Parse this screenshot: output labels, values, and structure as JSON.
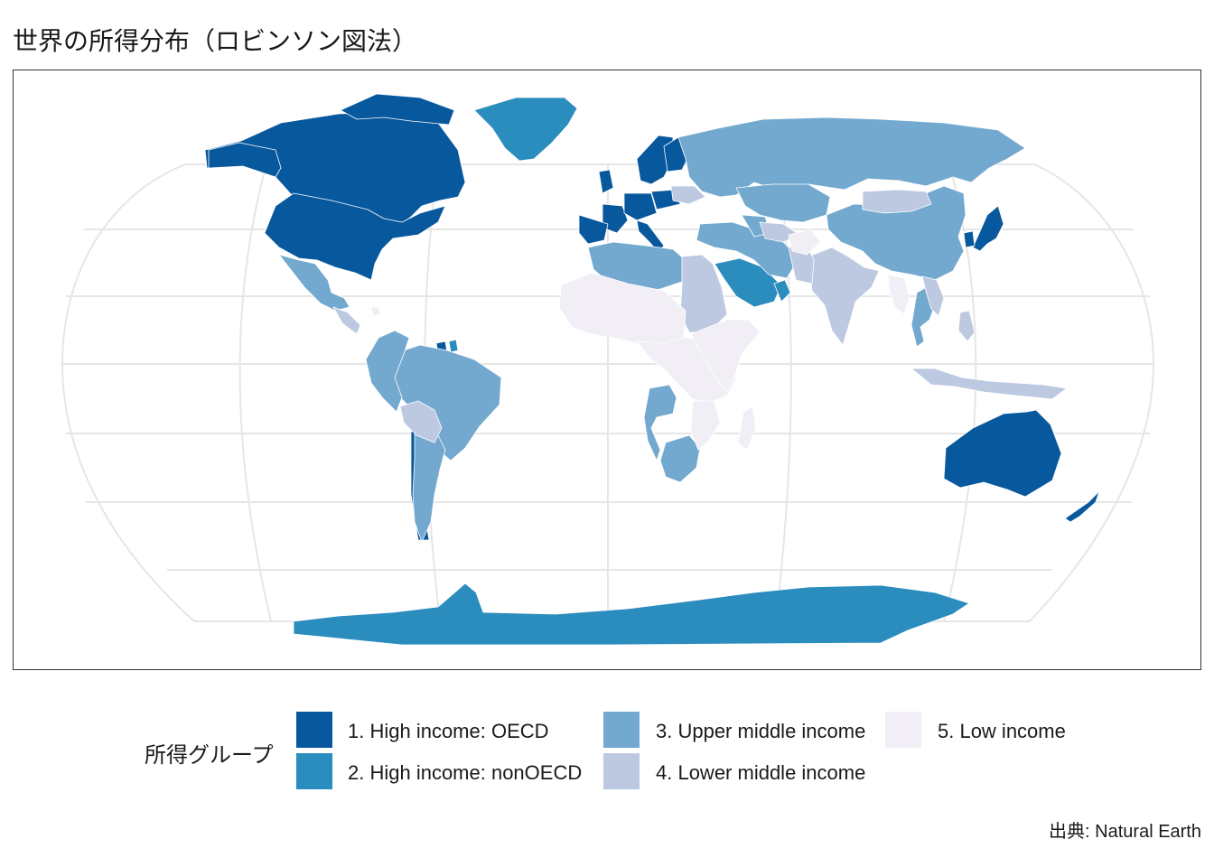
{
  "title": "世界の所得分布（ロビンソン図法）",
  "projection": "Robinson",
  "legend": {
    "title": "所得グループ",
    "items": [
      {
        "label": "1. High income: OECD",
        "color": "#08589e"
      },
      {
        "label": "2. High income: nonOECD",
        "color": "#2b8cbe"
      },
      {
        "label": "3. Upper middle income",
        "color": "#74a9cf"
      },
      {
        "label": "4. Lower middle income",
        "color": "#bdc9e1"
      },
      {
        "label": "5. Low income",
        "color": "#f1eef6"
      }
    ]
  },
  "caption": "出典: Natural Earth",
  "colors": {
    "graticule": "#e6e6e6",
    "border": "#ffffff",
    "panel_border": "#333333"
  }
}
